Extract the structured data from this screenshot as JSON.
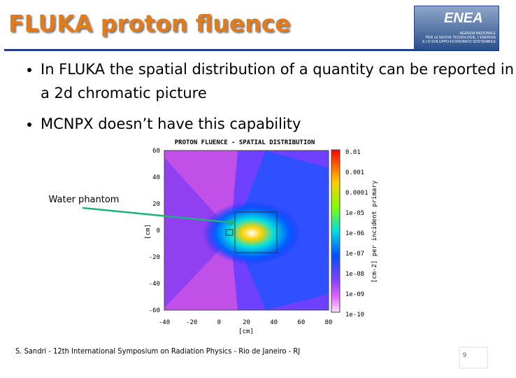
{
  "header": {
    "title": "FLUKA proton fluence",
    "logo": "ENEA",
    "logo_caption": [
      "AGENZIA NAZIONALE",
      "PER LE NUOVE TECNOLOGIE, L'ENERGIA",
      "E LO SVILUPPO ECONOMICO SOSTENIBILE"
    ]
  },
  "bullets": [
    "In FLUKA the spatial distribution of a quantity can be reported in a 2d chromatic picture",
    "MCNPX doesn’t have this capability"
  ],
  "figure": {
    "title": "PROTON FLUENCE - SPATIAL DISTRIBUTION",
    "y_ticks": [
      "60",
      "40",
      "20",
      "0",
      "-20",
      "-40",
      "-60"
    ],
    "x_ticks": [
      "-40",
      "-20",
      "0",
      "20",
      "40",
      "60",
      "80"
    ],
    "y_label": "[cm]",
    "x_label": "[cm]",
    "colorbar_ticks": [
      "0.01",
      "0.001",
      "0.0001",
      "1e-05",
      "1e-06",
      "1e-07",
      "1e-08",
      "1e-09",
      "1e-10"
    ],
    "colorbar_label": "[cm-2] per incident primary",
    "annotation": "Water phantom"
  },
  "footer": {
    "citation": "S. Sandri - 12th International Symposium on Radiation Physics - Rio de Janeiro - RJ",
    "page": "9"
  }
}
